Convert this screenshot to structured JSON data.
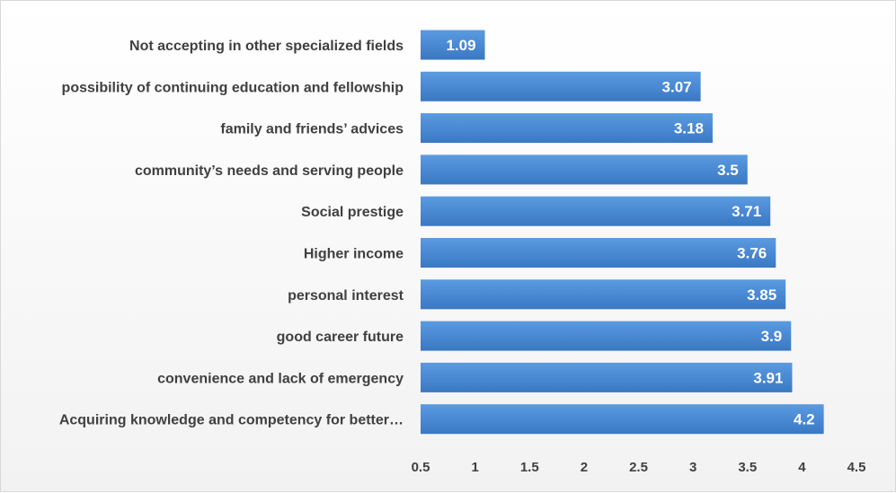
{
  "chart_data": {
    "type": "bar",
    "orientation": "horizontal",
    "title": "",
    "xlabel": "",
    "ylabel": "",
    "categories": [
      "Not accepting in other specialized fields",
      "possibility of continuing education and fellowship",
      "family and friends’ advices",
      "community’s needs and serving people",
      "Social prestige",
      "Higher income",
      "personal interest",
      "good career future",
      "convenience and lack of emergency",
      "Acquiring knowledge and competency for better…"
    ],
    "values": [
      1.09,
      3.07,
      3.18,
      3.5,
      3.71,
      3.76,
      3.85,
      3.9,
      3.91,
      4.2
    ],
    "value_labels": [
      "1.09",
      "3.07",
      "3.18",
      "3.5",
      "3.71",
      "3.76",
      "3.85",
      "3.9",
      "3.91",
      "4.2"
    ],
    "xlim": [
      0.5,
      4.5
    ],
    "xticks": [
      0.5,
      1,
      1.5,
      2,
      2.5,
      3,
      3.5,
      4,
      4.5
    ],
    "xtick_labels": [
      "0.5",
      "1",
      "1.5",
      "2",
      "2.5",
      "3",
      "3.5",
      "4",
      "4.5"
    ],
    "grid": false,
    "legend": "none",
    "bar_color": "#4f8fd6",
    "bar_color_dark": "#3a78c2"
  }
}
